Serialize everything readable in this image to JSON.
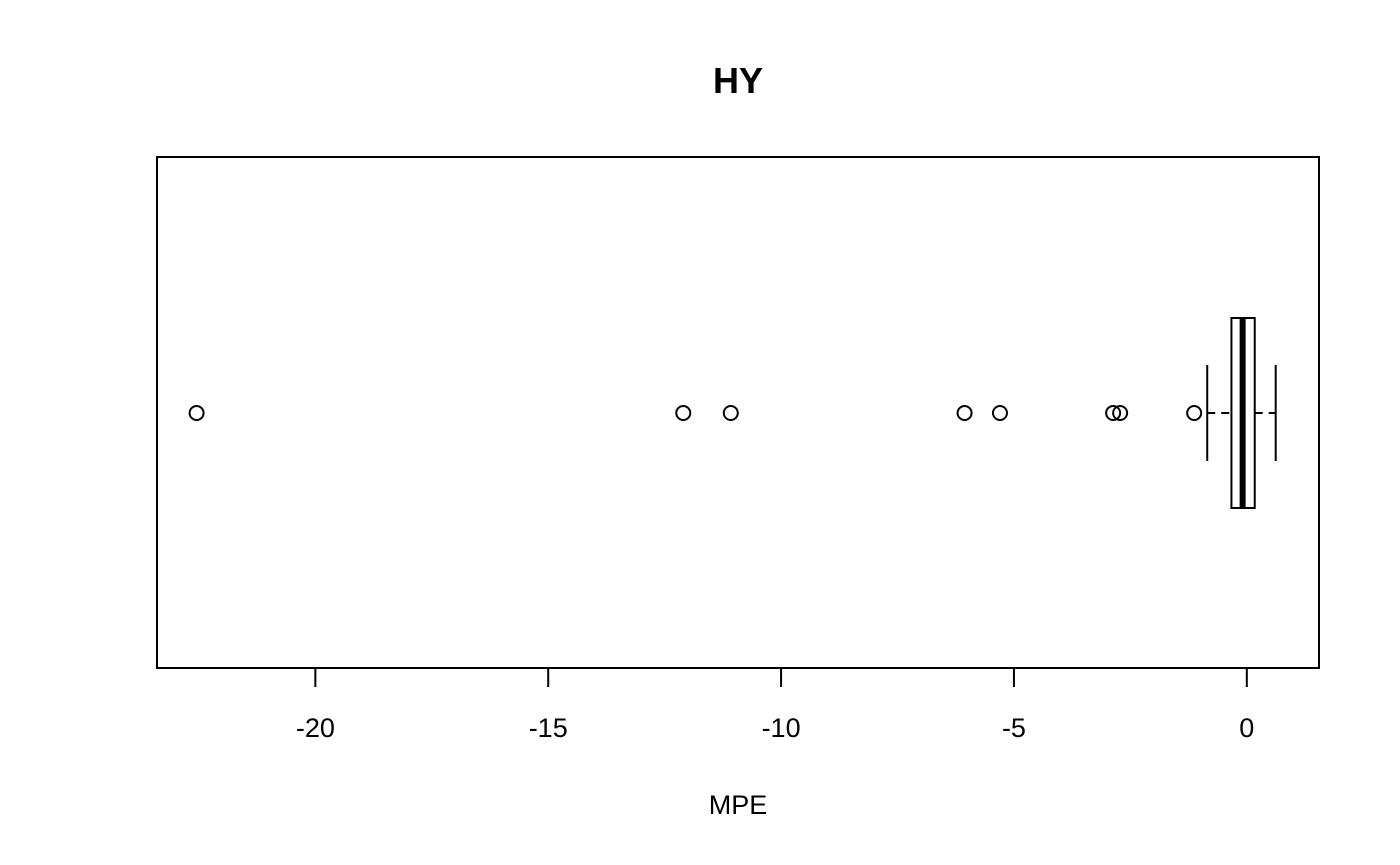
{
  "chart_data": {
    "type": "boxplot",
    "orientation": "horizontal",
    "title": "HY",
    "xlabel": "MPE",
    "ylabel": "",
    "xlim": [
      -23.4,
      1.55
    ],
    "xticks": [
      -20,
      -15,
      -10,
      -5,
      0
    ],
    "xtick_labels": [
      "-20",
      "-15",
      "-10",
      "-5",
      "0"
    ],
    "grid": false,
    "box": {
      "whisker_low": -0.85,
      "q1": -0.33,
      "median": -0.09,
      "q3": 0.17,
      "whisker_high": 0.62
    },
    "outliers": [
      -22.55,
      -12.1,
      -11.08,
      -6.06,
      -5.3,
      -2.87,
      -2.72,
      -1.13
    ],
    "colors": {
      "stroke": "#000000",
      "box_fill": "#ffffff"
    }
  }
}
